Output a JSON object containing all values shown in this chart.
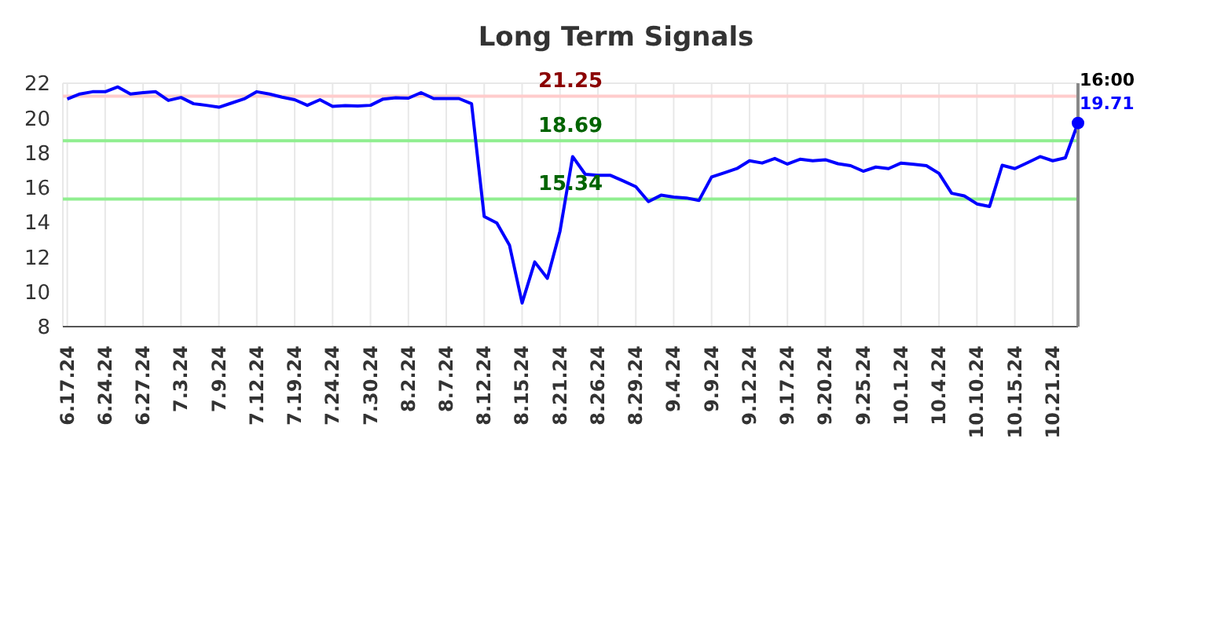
{
  "chart_data": {
    "type": "line",
    "title": "Long Term Signals",
    "categories": [
      "6.17.24",
      null,
      null,
      "6.24.24",
      null,
      null,
      "6.27.24",
      null,
      null,
      "7.3.24",
      null,
      null,
      "7.9.24",
      null,
      null,
      "7.12.24",
      null,
      null,
      "7.19.24",
      null,
      null,
      "7.24.24",
      null,
      null,
      "7.30.24",
      null,
      null,
      "8.2.24",
      null,
      null,
      "8.7.24",
      null,
      null,
      "8.12.24",
      null,
      null,
      "8.15.24",
      null,
      null,
      "8.21.24",
      null,
      null,
      "8.26.24",
      null,
      null,
      "8.29.24",
      null,
      null,
      "9.4.24",
      null,
      null,
      "9.9.24",
      null,
      null,
      "9.12.24",
      null,
      null,
      "9.17.24",
      null,
      null,
      "9.20.24",
      null,
      null,
      "9.25.24",
      null,
      null,
      "10.1.24",
      null,
      null,
      "10.4.24",
      null,
      null,
      "10.10.24",
      null,
      null,
      "10.15.24",
      null,
      null,
      "10.21.24",
      null,
      null
    ],
    "series": [
      {
        "color": "#0000ff",
        "values": [
          21.09,
          21.38,
          21.51,
          21.51,
          21.79,
          21.38,
          21.46,
          21.51,
          21.01,
          21.18,
          20.82,
          20.73,
          20.62,
          20.86,
          21.1,
          21.51,
          21.38,
          21.2,
          21.05,
          20.73,
          21.05,
          20.67,
          20.71,
          20.69,
          20.73,
          21.09,
          21.16,
          21.14,
          21.46,
          21.12,
          21.12,
          21.12,
          20.82,
          14.33,
          13.96,
          12.69,
          9.36,
          11.72,
          10.78,
          13.49,
          17.78,
          16.76,
          16.7,
          16.7,
          16.38,
          16.05,
          15.19,
          15.56,
          15.45,
          15.4,
          15.26,
          16.61,
          16.85,
          17.09,
          17.54,
          17.41,
          17.67,
          17.35,
          17.63,
          17.54,
          17.6,
          17.37,
          17.26,
          16.94,
          17.18,
          17.09,
          17.41,
          17.34,
          17.26,
          16.81,
          15.67,
          15.52,
          15.06,
          14.91,
          17.28,
          17.09,
          17.43,
          17.78,
          17.54,
          17.71,
          19.71
        ],
        "value_labels": [
          null,
          null,
          null,
          null,
          null,
          null,
          null,
          null,
          null,
          null,
          null,
          null,
          null,
          null,
          null,
          null,
          null,
          null,
          null,
          null,
          null,
          null,
          null,
          null,
          null,
          null,
          null,
          null,
          null,
          null,
          null,
          null,
          null,
          null,
          null,
          null,
          null,
          null,
          null,
          null,
          null,
          null,
          null,
          null,
          null,
          null,
          null,
          null,
          null,
          null,
          null,
          null,
          null,
          null,
          null,
          null,
          null,
          null,
          null,
          null,
          null,
          null,
          null,
          null,
          null,
          null,
          null,
          null,
          null,
          null,
          null,
          null,
          null,
          null,
          null,
          null,
          null,
          null,
          null,
          null,
          "19.71"
        ]
      }
    ],
    "annotations": [
      "16:00"
    ],
    "ylim": [
      8,
      22
    ],
    "yticks": [
      8,
      10,
      12,
      14,
      16,
      18,
      20,
      22
    ],
    "ref_lines": [
      {
        "axis": "y",
        "value": 21.25,
        "label": "21.25",
        "color": "#ffcccc"
      },
      {
        "axis": "y",
        "value": 18.69,
        "label": "18.69",
        "color": "#90ee90"
      },
      {
        "axis": "y",
        "value": 15.34,
        "label": "15.34",
        "color": "#90ee90"
      }
    ],
    "grid": true,
    "legend": false,
    "marker": "none",
    "line_style": "solid"
  }
}
